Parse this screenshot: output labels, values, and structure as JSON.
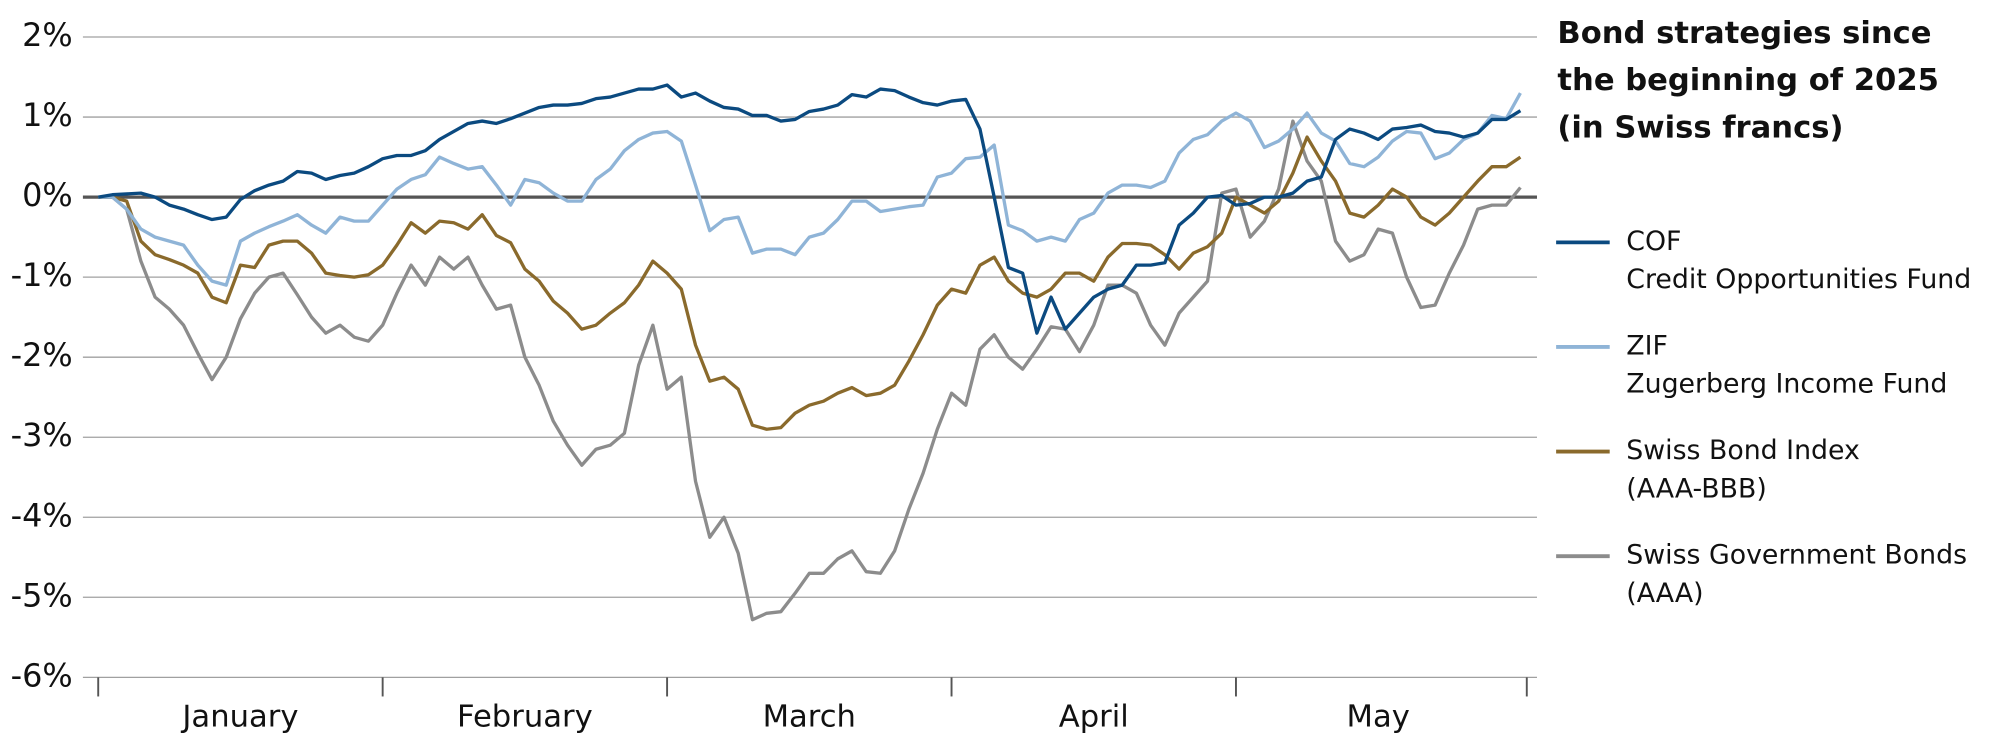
{
  "chart_data": {
    "type": "line",
    "title": [
      "Bond strategies since",
      "the beginning of 2025",
      "(in Swiss francs)"
    ],
    "categories": [
      null,
      null,
      null,
      null,
      null,
      null,
      null,
      null,
      null,
      null,
      "January",
      null,
      null,
      null,
      null,
      null,
      null,
      null,
      null,
      null,
      null,
      null,
      null,
      null,
      null,
      null,
      null,
      null,
      null,
      null,
      "February",
      null,
      null,
      null,
      null,
      null,
      null,
      null,
      null,
      null,
      null,
      null,
      null,
      null,
      null,
      null,
      null,
      null,
      null,
      null,
      "March",
      null,
      null,
      null,
      null,
      null,
      null,
      null,
      null,
      null,
      null,
      null,
      null,
      null,
      null,
      null,
      null,
      null,
      null,
      null,
      "April",
      null,
      null,
      null,
      null,
      null,
      null,
      null,
      null,
      null,
      null,
      null,
      null,
      null,
      null,
      null,
      null,
      null,
      null,
      null,
      "May",
      null,
      null,
      null,
      null,
      null,
      null,
      null,
      null,
      null,
      null
    ],
    "ylim": [
      -6,
      2
    ],
    "yticks": [
      {
        "value": -6,
        "label": "-6%"
      },
      {
        "value": -5,
        "label": "-5%"
      },
      {
        "value": -4,
        "label": "-4%"
      },
      {
        "value": -3,
        "label": "-3%"
      },
      {
        "value": -2,
        "label": "-2%"
      },
      {
        "value": -1,
        "label": "-1%"
      },
      {
        "value": 0,
        "label": "0%"
      },
      {
        "value": 1,
        "label": "1%"
      },
      {
        "value": 2,
        "label": "2%"
      }
    ],
    "grid": true,
    "legend": "right",
    "series": [
      {
        "name": [
          "COF",
          "Credit Opportunities Fund"
        ],
        "color": "#0b4a80",
        "values": [
          0,
          0.03,
          0.04,
          0.05,
          0,
          -0.1,
          -0.15,
          -0.22,
          -0.28,
          -0.25,
          -0.03,
          0.08,
          0.15,
          0.2,
          0.32,
          0.3,
          0.22,
          0.27,
          0.3,
          0.38,
          0.48,
          0.52,
          0.52,
          0.58,
          0.72,
          0.82,
          0.92,
          0.95,
          0.92,
          0.98,
          1.05,
          1.12,
          1.15,
          1.15,
          1.17,
          1.23,
          1.25,
          1.3,
          1.35,
          1.35,
          1.4,
          1.25,
          1.3,
          1.2,
          1.12,
          1.1,
          1.02,
          1.02,
          0.95,
          0.97,
          1.07,
          1.1,
          1.15,
          1.28,
          1.25,
          1.35,
          1.33,
          1.25,
          1.18,
          1.15,
          1.2,
          1.22,
          0.85,
          0,
          -0.88,
          -0.95,
          -1.7,
          -1.25,
          -1.65,
          -1.45,
          -1.25,
          -1.15,
          -1.1,
          -0.85,
          -0.85,
          -0.82,
          -0.35,
          -0.2,
          0,
          0.02,
          -0.1,
          -0.08,
          0,
          0,
          0.05,
          0.2,
          0.25,
          0.72,
          0.85,
          0.8,
          0.72,
          0.85,
          0.87,
          0.9,
          0.82,
          0.8,
          0.75,
          0.8,
          0.97,
          0.97,
          1.08
        ]
      },
      {
        "name": [
          "ZIF",
          "Zugerberg Income Fund"
        ],
        "color": "#8fb4d7",
        "values": [
          0,
          0,
          -0.15,
          -0.4,
          -0.5,
          -0.55,
          -0.6,
          -0.85,
          -1.05,
          -1.1,
          -0.55,
          -0.45,
          -0.37,
          -0.3,
          -0.22,
          -0.35,
          -0.45,
          -0.25,
          -0.3,
          -0.3,
          -0.1,
          0.1,
          0.22,
          0.28,
          0.5,
          0.42,
          0.35,
          0.38,
          0.15,
          -0.1,
          0.22,
          0.18,
          0.05,
          -0.05,
          -0.05,
          0.22,
          0.35,
          0.58,
          0.72,
          0.8,
          0.82,
          0.7,
          0.15,
          -0.42,
          -0.28,
          -0.25,
          -0.7,
          -0.65,
          -0.65,
          -0.72,
          -0.5,
          -0.45,
          -0.28,
          -0.05,
          -0.05,
          -0.18,
          -0.15,
          -0.12,
          -0.1,
          0.25,
          0.3,
          0.48,
          0.5,
          0.65,
          -0.35,
          -0.42,
          -0.55,
          -0.5,
          -0.55,
          -0.28,
          -0.2,
          0.05,
          0.15,
          0.15,
          0.12,
          0.2,
          0.55,
          0.72,
          0.78,
          0.95,
          1.05,
          0.95,
          0.62,
          0.7,
          0.85,
          1.05,
          0.8,
          0.7,
          0.42,
          0.38,
          0.5,
          0.7,
          0.82,
          0.8,
          0.48,
          0.55,
          0.72,
          0.8,
          1.02,
          0.98,
          1.3
        ]
      },
      {
        "name": [
          "Swiss Bond Index",
          "(AAA-BBB)"
        ],
        "color": "#8a6a2c",
        "values": [
          0,
          0,
          -0.05,
          -0.55,
          -0.72,
          -0.78,
          -0.85,
          -0.95,
          -1.25,
          -1.32,
          -0.85,
          -0.88,
          -0.6,
          -0.55,
          -0.55,
          -0.7,
          -0.95,
          -0.98,
          -1,
          -0.97,
          -0.85,
          -0.6,
          -0.32,
          -0.45,
          -0.3,
          -0.32,
          -0.4,
          -0.22,
          -0.48,
          -0.57,
          -0.9,
          -1.05,
          -1.3,
          -1.45,
          -1.65,
          -1.6,
          -1.45,
          -1.32,
          -1.1,
          -0.8,
          -0.95,
          -1.15,
          -1.85,
          -2.3,
          -2.25,
          -2.4,
          -2.85,
          -2.9,
          -2.88,
          -2.7,
          -2.6,
          -2.55,
          -2.45,
          -2.38,
          -2.48,
          -2.45,
          -2.35,
          -2.05,
          -1.72,
          -1.35,
          -1.15,
          -1.2,
          -0.85,
          -0.75,
          -1.05,
          -1.2,
          -1.25,
          -1.15,
          -0.95,
          -0.95,
          -1.05,
          -0.75,
          -0.58,
          -0.58,
          -0.6,
          -0.72,
          -0.9,
          -0.7,
          -0.62,
          -0.45,
          0,
          -0.1,
          -0.2,
          -0.05,
          0.3,
          0.75,
          0.45,
          0.2,
          -0.2,
          -0.25,
          -0.1,
          0.1,
          0,
          -0.25,
          -0.35,
          -0.2,
          0,
          0.2,
          0.38,
          0.38,
          0.5
        ]
      },
      {
        "name": [
          "Swiss Government Bonds",
          "(AAA)"
        ],
        "color": "#8c8c8c",
        "values": [
          0,
          0,
          -0.15,
          -0.8,
          -1.25,
          -1.4,
          -1.6,
          -1.95,
          -2.28,
          -2,
          -1.52,
          -1.2,
          -1,
          -0.95,
          -1.22,
          -1.5,
          -1.7,
          -1.6,
          -1.75,
          -1.8,
          -1.6,
          -1.2,
          -0.85,
          -1.1,
          -0.75,
          -0.9,
          -0.75,
          -1.1,
          -1.4,
          -1.35,
          -2,
          -2.35,
          -2.8,
          -3.1,
          -3.35,
          -3.15,
          -3.1,
          -2.95,
          -2.1,
          -1.6,
          -2.4,
          -2.25,
          -3.55,
          -4.25,
          -4,
          -4.45,
          -5.28,
          -5.2,
          -5.18,
          -4.95,
          -4.7,
          -4.7,
          -4.52,
          -4.42,
          -4.68,
          -4.7,
          -4.42,
          -3.9,
          -3.45,
          -2.9,
          -2.45,
          -2.6,
          -1.9,
          -1.72,
          -2,
          -2.15,
          -1.9,
          -1.62,
          -1.65,
          -1.93,
          -1.6,
          -1.1,
          -1.1,
          -1.2,
          -1.6,
          -1.85,
          -1.45,
          -1.25,
          -1.05,
          0.05,
          0.1,
          -0.5,
          -0.3,
          0.1,
          0.95,
          0.45,
          0.2,
          -0.55,
          -0.8,
          -0.72,
          -0.4,
          -0.45,
          -1,
          -1.38,
          -1.35,
          -0.95,
          -0.6,
          -0.15,
          -0.1,
          -0.1,
          0.12
        ]
      }
    ]
  }
}
